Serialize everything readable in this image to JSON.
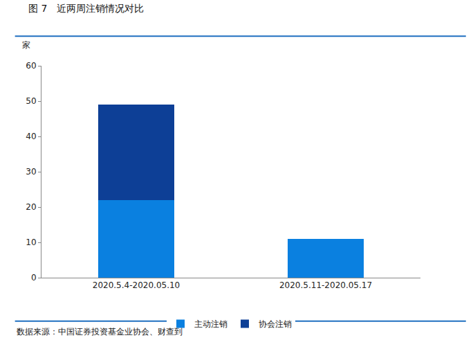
{
  "chart_data": {
    "type": "bar",
    "title": "图 7　近两周注销情况对比",
    "ylabel": "家",
    "note": "数据来源：中国证券投资基金业协会、财查到",
    "categories": [
      "2020.5.4-2020.05.10",
      "2020.5.11-2020.05.17"
    ],
    "series": [
      {
        "name": "主动注销",
        "color": "#0a80e0",
        "values": [
          22,
          11
        ]
      },
      {
        "name": "协会注销",
        "color": "#0d3f96",
        "values": [
          27,
          0
        ]
      }
    ],
    "stacked": true,
    "ylim": [
      0,
      60
    ],
    "yticks": [
      0,
      10,
      20,
      30,
      40,
      50,
      60
    ],
    "grid": false,
    "legend": "bottom"
  }
}
